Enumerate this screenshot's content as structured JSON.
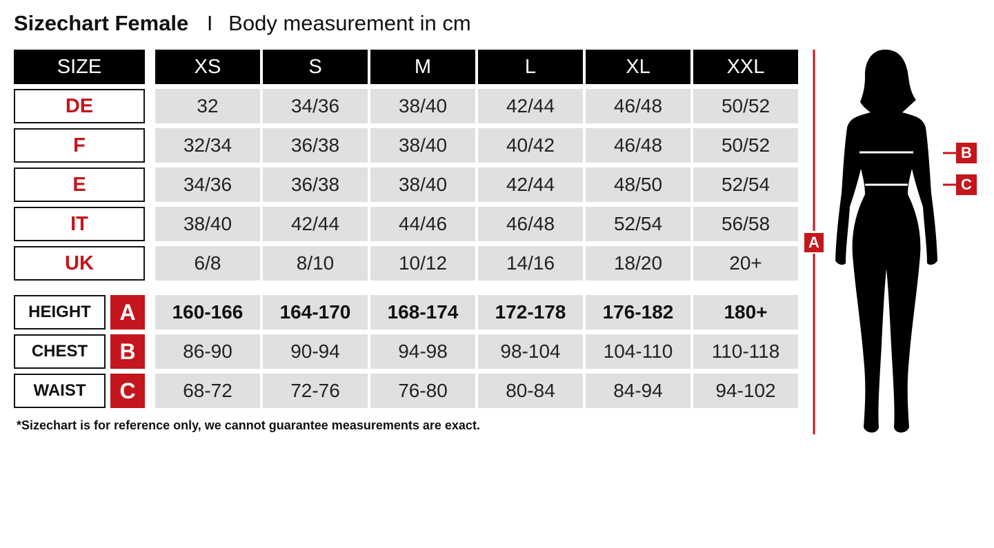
{
  "title": {
    "bold": "Sizechart Female",
    "separator": "I",
    "subtitle": "Body measurement in cm"
  },
  "header": {
    "label": "SIZE",
    "sizes": [
      "XS",
      "S",
      "M",
      "L",
      "XL",
      "XXL"
    ]
  },
  "conversion_rows": [
    {
      "label": "DE",
      "values": [
        "32",
        "34/36",
        "38/40",
        "42/44",
        "46/48",
        "50/52"
      ]
    },
    {
      "label": "F",
      "values": [
        "32/34",
        "36/38",
        "38/40",
        "40/42",
        "46/48",
        "50/52"
      ]
    },
    {
      "label": "E",
      "values": [
        "34/36",
        "36/38",
        "38/40",
        "42/44",
        "48/50",
        "52/54"
      ]
    },
    {
      "label": "IT",
      "values": [
        "38/40",
        "42/44",
        "44/46",
        "46/48",
        "52/54",
        "56/58"
      ]
    },
    {
      "label": "UK",
      "values": [
        "6/8",
        "8/10",
        "10/12",
        "14/16",
        "18/20",
        "20+"
      ]
    }
  ],
  "measurement_rows": [
    {
      "label": "HEIGHT",
      "key": "A",
      "values": [
        "160-166",
        "164-170",
        "168-174",
        "172-178",
        "176-182",
        "180+"
      ]
    },
    {
      "label": "CHEST",
      "key": "B",
      "values": [
        "86-90",
        "90-94",
        "94-98",
        "98-104",
        "104-110",
        "110-118"
      ]
    },
    {
      "label": "WAIST",
      "key": "C",
      "values": [
        "68-72",
        "72-76",
        "76-80",
        "80-84",
        "84-94",
        "94-102"
      ]
    }
  ],
  "footnote": "*Sizechart is for reference only, we cannot guarantee measurements are exact.",
  "figure": {
    "height_tag": "A",
    "chest_tag": "B",
    "waist_tag": "C",
    "icon": "female-silhouette"
  },
  "colors": {
    "accent": "#c4161c",
    "header": "#000000",
    "cell": "#e0e0e0"
  }
}
